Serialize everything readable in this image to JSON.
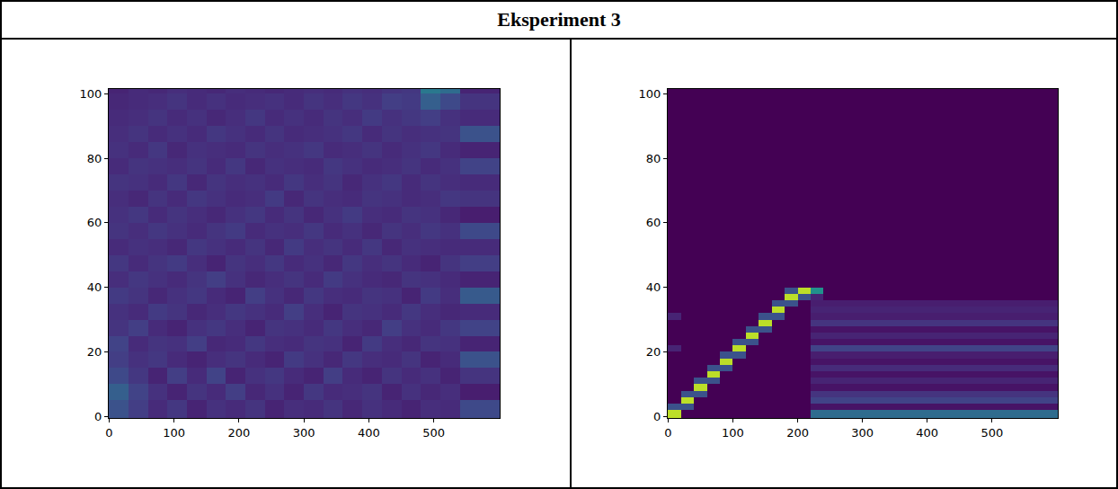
{
  "title": "Eksperiment 3",
  "chart_data": [
    {
      "type": "heatmap",
      "x": [
        -0.5,
        30,
        60,
        90,
        120,
        150,
        180,
        210,
        240,
        270,
        300,
        330,
        360,
        390,
        420,
        450,
        480,
        510,
        540,
        570,
        601.5
      ],
      "y": [
        -0.5,
        5,
        10,
        15,
        20,
        25,
        30,
        35,
        40,
        45,
        50,
        55,
        60,
        65,
        70,
        75,
        80,
        85,
        90,
        95,
        100,
        101.5
      ],
      "z": [
        [
          0.25,
          0.18,
          0.12,
          0.16,
          0.1,
          0.14,
          0.12,
          0.15,
          0.1,
          0.13,
          0.12,
          0.15,
          0.11,
          0.14,
          0.12,
          0.1,
          0.13,
          0.12,
          0.22,
          0.22
        ],
        [
          0.3,
          0.2,
          0.14,
          0.1,
          0.15,
          0.12,
          0.18,
          0.11,
          0.14,
          0.1,
          0.16,
          0.12,
          0.13,
          0.15,
          0.1,
          0.14,
          0.11,
          0.13,
          0.08,
          0.08
        ],
        [
          0.22,
          0.16,
          0.1,
          0.18,
          0.12,
          0.2,
          0.1,
          0.14,
          0.16,
          0.12,
          0.1,
          0.18,
          0.12,
          0.1,
          0.15,
          0.12,
          0.14,
          0.1,
          0.15,
          0.15
        ],
        [
          0.18,
          0.14,
          0.16,
          0.12,
          0.1,
          0.13,
          0.15,
          0.12,
          0.1,
          0.17,
          0.14,
          0.11,
          0.16,
          0.13,
          0.12,
          0.15,
          0.1,
          0.12,
          0.25,
          0.25
        ],
        [
          0.2,
          0.12,
          0.15,
          0.14,
          0.18,
          0.11,
          0.12,
          0.16,
          0.13,
          0.12,
          0.15,
          0.14,
          0.1,
          0.17,
          0.13,
          0.11,
          0.15,
          0.14,
          0.1,
          0.1
        ],
        [
          0.15,
          0.18,
          0.12,
          0.1,
          0.14,
          0.16,
          0.13,
          0.1,
          0.15,
          0.14,
          0.12,
          0.16,
          0.13,
          0.11,
          0.18,
          0.14,
          0.12,
          0.16,
          0.2,
          0.2
        ],
        [
          0.14,
          0.12,
          0.17,
          0.15,
          0.11,
          0.13,
          0.16,
          0.14,
          0.12,
          0.18,
          0.13,
          0.1,
          0.15,
          0.14,
          0.12,
          0.16,
          0.13,
          0.11,
          0.12,
          0.12
        ],
        [
          0.17,
          0.15,
          0.11,
          0.14,
          0.16,
          0.12,
          0.1,
          0.18,
          0.14,
          0.11,
          0.16,
          0.13,
          0.12,
          0.15,
          0.14,
          0.1,
          0.17,
          0.13,
          0.28,
          0.28
        ],
        [
          0.13,
          0.16,
          0.14,
          0.12,
          0.15,
          0.18,
          0.14,
          0.11,
          0.13,
          0.15,
          0.12,
          0.17,
          0.14,
          0.12,
          0.11,
          0.15,
          0.14,
          0.12,
          0.1,
          0.1
        ],
        [
          0.16,
          0.12,
          0.15,
          0.17,
          0.13,
          0.1,
          0.15,
          0.13,
          0.16,
          0.12,
          0.14,
          0.11,
          0.16,
          0.13,
          0.15,
          0.12,
          0.1,
          0.15,
          0.18,
          0.18
        ],
        [
          0.12,
          0.14,
          0.13,
          0.11,
          0.16,
          0.14,
          0.12,
          0.15,
          0.11,
          0.17,
          0.13,
          0.15,
          0.12,
          0.16,
          0.11,
          0.14,
          0.13,
          0.12,
          0.12,
          0.12
        ],
        [
          0.15,
          0.13,
          0.16,
          0.14,
          0.12,
          0.15,
          0.17,
          0.12,
          0.14,
          0.13,
          0.16,
          0.12,
          0.14,
          0.11,
          0.15,
          0.13,
          0.16,
          0.14,
          0.22,
          0.22
        ],
        [
          0.14,
          0.16,
          0.12,
          0.15,
          0.13,
          0.11,
          0.14,
          0.16,
          0.12,
          0.15,
          0.11,
          0.14,
          0.17,
          0.13,
          0.12,
          0.15,
          0.14,
          0.11,
          0.08,
          0.08
        ],
        [
          0.13,
          0.11,
          0.15,
          0.12,
          0.16,
          0.14,
          0.12,
          0.13,
          0.17,
          0.11,
          0.15,
          0.13,
          0.12,
          0.15,
          0.14,
          0.12,
          0.13,
          0.16,
          0.15,
          0.15
        ],
        [
          0.15,
          0.14,
          0.12,
          0.16,
          0.11,
          0.15,
          0.13,
          0.14,
          0.12,
          0.16,
          0.13,
          0.15,
          0.11,
          0.14,
          0.16,
          0.12,
          0.15,
          0.13,
          0.12,
          0.12
        ],
        [
          0.12,
          0.15,
          0.14,
          0.13,
          0.15,
          0.12,
          0.16,
          0.11,
          0.14,
          0.13,
          0.12,
          0.16,
          0.14,
          0.12,
          0.13,
          0.15,
          0.12,
          0.14,
          0.2,
          0.2
        ],
        [
          0.14,
          0.12,
          0.16,
          0.11,
          0.14,
          0.13,
          0.12,
          0.15,
          0.13,
          0.14,
          0.16,
          0.12,
          0.13,
          0.15,
          0.12,
          0.14,
          0.16,
          0.12,
          0.1,
          0.1
        ],
        [
          0.13,
          0.15,
          0.12,
          0.14,
          0.12,
          0.16,
          0.14,
          0.12,
          0.15,
          0.12,
          0.13,
          0.14,
          0.16,
          0.12,
          0.15,
          0.13,
          0.14,
          0.15,
          0.25,
          0.25
        ],
        [
          0.12,
          0.13,
          0.15,
          0.12,
          0.14,
          0.11,
          0.13,
          0.16,
          0.12,
          0.14,
          0.12,
          0.15,
          0.13,
          0.17,
          0.14,
          0.16,
          0.18,
          0.14,
          0.12,
          0.12
        ],
        [
          0.11,
          0.12,
          0.13,
          0.15,
          0.12,
          0.14,
          0.12,
          0.13,
          0.14,
          0.12,
          0.15,
          0.13,
          0.16,
          0.14,
          0.18,
          0.17,
          0.3,
          0.22,
          0.15,
          0.15
        ],
        [
          0.1,
          0.12,
          0.11,
          0.13,
          0.12,
          0.11,
          0.13,
          0.12,
          0.11,
          0.12,
          0.13,
          0.12,
          0.14,
          0.13,
          0.15,
          0.16,
          0.4,
          0.35,
          0.1,
          0.1
        ]
      ],
      "zlim": [
        0,
        1
      ],
      "xlim": [
        -0.5,
        601.5
      ],
      "ylim": [
        -0.5,
        101.5
      ],
      "xticks": [
        0,
        100,
        200,
        300,
        400,
        500
      ],
      "yticks": [
        0,
        20,
        40,
        60,
        80,
        100
      ]
    },
    {
      "type": "heatmap",
      "x": [
        -0.5,
        20,
        40,
        60,
        80,
        100,
        120,
        140,
        160,
        180,
        200,
        220,
        240,
        260,
        280,
        300,
        320,
        340,
        360,
        380,
        400,
        420,
        440,
        460,
        480,
        500,
        520,
        540,
        560,
        580,
        601.5
      ],
      "y": [
        -0.5,
        2,
        4,
        6,
        8,
        10,
        12,
        14,
        16,
        18,
        20,
        22,
        24,
        26,
        28,
        30,
        32,
        34,
        36,
        38,
        40,
        42,
        101.5
      ],
      "z": [
        [
          0.9,
          0,
          0,
          0,
          0,
          0,
          0,
          0,
          0,
          0,
          0,
          0.35,
          0.35,
          0.35,
          0.35,
          0.35,
          0.35,
          0.35,
          0.35,
          0.35,
          0.35,
          0.35,
          0.35,
          0.35,
          0.35,
          0.35,
          0.35,
          0.35,
          0.35,
          0.35
        ],
        [
          0.25,
          0.25,
          0,
          0,
          0,
          0,
          0,
          0,
          0,
          0,
          0,
          0.05,
          0.05,
          0.05,
          0.05,
          0.05,
          0.05,
          0.05,
          0.05,
          0.05,
          0.05,
          0.05,
          0.05,
          0.05,
          0.05,
          0.05,
          0.05,
          0.05,
          0.05,
          0.05
        ],
        [
          0,
          0.9,
          0,
          0,
          0,
          0,
          0,
          0,
          0,
          0,
          0,
          0.2,
          0.2,
          0.2,
          0.2,
          0.2,
          0.2,
          0.2,
          0.2,
          0.2,
          0.2,
          0.2,
          0.2,
          0.2,
          0.2,
          0.2,
          0.2,
          0.2,
          0.2,
          0.2
        ],
        [
          0,
          0.25,
          0.25,
          0,
          0,
          0,
          0,
          0,
          0,
          0,
          0,
          0.15,
          0.15,
          0.15,
          0.15,
          0.15,
          0.15,
          0.15,
          0.15,
          0.15,
          0.15,
          0.15,
          0.15,
          0.15,
          0.15,
          0.15,
          0.15,
          0.15,
          0.15,
          0.15
        ],
        [
          0,
          0,
          0.9,
          0,
          0,
          0,
          0,
          0,
          0,
          0,
          0,
          0.05,
          0.05,
          0.05,
          0.05,
          0.05,
          0.05,
          0.05,
          0.05,
          0.05,
          0.05,
          0.05,
          0.05,
          0.05,
          0.05,
          0.05,
          0.05,
          0.05,
          0.05,
          0.05
        ],
        [
          0,
          0,
          0.25,
          0.25,
          0,
          0,
          0,
          0,
          0,
          0,
          0,
          0.1,
          0.1,
          0.1,
          0.1,
          0.1,
          0.1,
          0.1,
          0.1,
          0.1,
          0.1,
          0.1,
          0.1,
          0.1,
          0.1,
          0.1,
          0.1,
          0.1,
          0.1,
          0.1
        ],
        [
          0,
          0,
          0,
          0.9,
          0,
          0,
          0,
          0,
          0,
          0,
          0,
          0.05,
          0.05,
          0.05,
          0.05,
          0.05,
          0.05,
          0.05,
          0.05,
          0.05,
          0.05,
          0.05,
          0.05,
          0.05,
          0.05,
          0.05,
          0.05,
          0.05,
          0.05,
          0.05
        ],
        [
          0,
          0,
          0,
          0.25,
          0.25,
          0,
          0,
          0,
          0,
          0,
          0,
          0.12,
          0.12,
          0.12,
          0.12,
          0.12,
          0.12,
          0.12,
          0.12,
          0.12,
          0.12,
          0.12,
          0.12,
          0.12,
          0.12,
          0.12,
          0.12,
          0.12,
          0.12,
          0.12
        ],
        [
          0,
          0,
          0,
          0,
          0.9,
          0,
          0,
          0,
          0,
          0,
          0,
          0.05,
          0.05,
          0.05,
          0.05,
          0.05,
          0.05,
          0.05,
          0.05,
          0.05,
          0.05,
          0.05,
          0.05,
          0.05,
          0.05,
          0.05,
          0.05,
          0.05,
          0.05,
          0.05
        ],
        [
          0,
          0,
          0,
          0,
          0.25,
          0.25,
          0,
          0,
          0,
          0,
          0,
          0.08,
          0.08,
          0.08,
          0.08,
          0.08,
          0.08,
          0.08,
          0.08,
          0.08,
          0.08,
          0.08,
          0.08,
          0.08,
          0.08,
          0.08,
          0.08,
          0.08,
          0.08,
          0.08
        ],
        [
          0.1,
          0,
          0,
          0,
          0,
          0.9,
          0,
          0,
          0,
          0,
          0,
          0.2,
          0.2,
          0.2,
          0.2,
          0.2,
          0.2,
          0.2,
          0.2,
          0.2,
          0.2,
          0.2,
          0.2,
          0.2,
          0.2,
          0.2,
          0.2,
          0.2,
          0.2,
          0.2
        ],
        [
          0,
          0,
          0,
          0,
          0,
          0.25,
          0.25,
          0,
          0,
          0,
          0,
          0.05,
          0.05,
          0.05,
          0.05,
          0.05,
          0.05,
          0.05,
          0.05,
          0.05,
          0.05,
          0.05,
          0.05,
          0.05,
          0.05,
          0.05,
          0.05,
          0.05,
          0.05,
          0.05
        ],
        [
          0,
          0,
          0,
          0,
          0,
          0,
          0.9,
          0,
          0,
          0,
          0,
          0.1,
          0.1,
          0.1,
          0.1,
          0.1,
          0.1,
          0.1,
          0.1,
          0.1,
          0.1,
          0.1,
          0.1,
          0.1,
          0.1,
          0.1,
          0.1,
          0.1,
          0.1,
          0.1
        ],
        [
          0,
          0,
          0,
          0,
          0,
          0,
          0.25,
          0.25,
          0,
          0,
          0,
          0.05,
          0.05,
          0.05,
          0.05,
          0.05,
          0.05,
          0.05,
          0.05,
          0.05,
          0.05,
          0.05,
          0.05,
          0.05,
          0.05,
          0.05,
          0.05,
          0.05,
          0.05,
          0.05
        ],
        [
          0,
          0,
          0,
          0,
          0,
          0,
          0,
          0.9,
          0,
          0,
          0,
          0.15,
          0.15,
          0.15,
          0.15,
          0.15,
          0.15,
          0.15,
          0.15,
          0.15,
          0.15,
          0.15,
          0.15,
          0.15,
          0.15,
          0.15,
          0.15,
          0.15,
          0.15,
          0.15
        ],
        [
          0.1,
          0,
          0,
          0,
          0,
          0,
          0,
          0.25,
          0.25,
          0,
          0,
          0.08,
          0.08,
          0.08,
          0.08,
          0.08,
          0.08,
          0.08,
          0.08,
          0.08,
          0.08,
          0.08,
          0.08,
          0.08,
          0.08,
          0.08,
          0.08,
          0.08,
          0.08,
          0.08
        ],
        [
          0,
          0,
          0,
          0,
          0,
          0,
          0,
          0,
          0.9,
          0,
          0,
          0.1,
          0.1,
          0.1,
          0.1,
          0.1,
          0.1,
          0.1,
          0.1,
          0.1,
          0.1,
          0.1,
          0.1,
          0.1,
          0.1,
          0.1,
          0.1,
          0.1,
          0.1,
          0.1
        ],
        [
          0,
          0,
          0,
          0,
          0,
          0,
          0,
          0,
          0.25,
          0.25,
          0,
          0.08,
          0.08,
          0.08,
          0.08,
          0.08,
          0.08,
          0.08,
          0.08,
          0.08,
          0.08,
          0.08,
          0.08,
          0.08,
          0.08,
          0.08,
          0.08,
          0.08,
          0.08,
          0.08
        ],
        [
          0,
          0,
          0,
          0,
          0,
          0,
          0,
          0,
          0,
          0.9,
          0.25,
          0.1,
          0,
          0,
          0,
          0,
          0,
          0,
          0,
          0,
          0,
          0,
          0,
          0,
          0,
          0,
          0,
          0,
          0,
          0
        ],
        [
          0,
          0,
          0,
          0,
          0,
          0,
          0,
          0,
          0,
          0.25,
          0.9,
          0.5,
          0,
          0,
          0,
          0,
          0,
          0,
          0,
          0,
          0,
          0,
          0,
          0,
          0,
          0,
          0,
          0,
          0,
          0
        ],
        [
          0,
          0,
          0,
          0,
          0,
          0,
          0,
          0,
          0,
          0,
          0,
          0,
          0,
          0,
          0,
          0,
          0,
          0,
          0,
          0,
          0,
          0,
          0,
          0,
          0,
          0,
          0,
          0,
          0,
          0
        ],
        [
          0,
          0,
          0,
          0,
          0,
          0,
          0,
          0,
          0,
          0,
          0,
          0,
          0,
          0,
          0,
          0,
          0,
          0,
          0,
          0,
          0,
          0,
          0,
          0,
          0,
          0,
          0,
          0,
          0,
          0
        ]
      ],
      "zlim": [
        0,
        1
      ],
      "xlim": [
        -0.5,
        601.5
      ],
      "ylim": [
        -0.5,
        101.5
      ],
      "xticks": [
        0,
        100,
        200,
        300,
        400,
        500
      ],
      "yticks": [
        0,
        20,
        40,
        60,
        80,
        100
      ]
    }
  ]
}
